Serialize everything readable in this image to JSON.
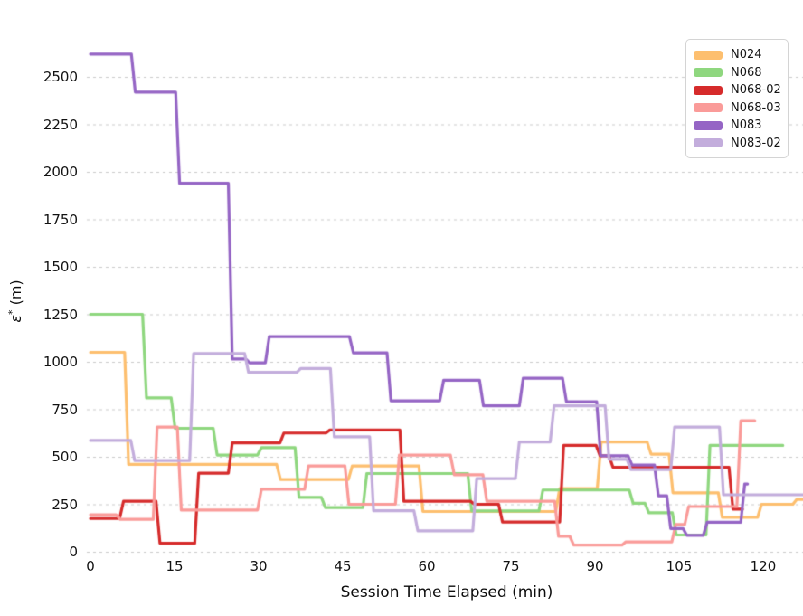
{
  "figure": {
    "xlabel": "Session Time Elapsed (min)",
    "ylabel_symbol": "ε",
    "ylabel_sup": "*",
    "ylabel_unit": " (m)",
    "background": "#ffffff",
    "grid_color": "#cbcbcb",
    "tick_color": "#121212"
  },
  "chart_data": {
    "type": "line",
    "step_style": "post-step with short ramps",
    "title": "",
    "xlabel": "Session Time Elapsed (min)",
    "ylabel": "ε* (m)",
    "xlim": [
      0,
      127.1
    ],
    "ylim": [
      0,
      2700
    ],
    "x_ticks": [
      0,
      15,
      30,
      45,
      60,
      75,
      90,
      105,
      120
    ],
    "y_ticks": [
      0,
      250,
      500,
      750,
      1000,
      1250,
      1500,
      1750,
      2000,
      2250,
      2500
    ],
    "grid": "horizontal dashed",
    "legend_position": "upper right",
    "series": [
      {
        "name": "N024",
        "color": "#fdbf6f",
        "end": 127.1,
        "points": [
          [
            0,
            1050
          ],
          [
            6.1,
            460
          ],
          [
            33.2,
            380
          ],
          [
            46,
            452
          ],
          [
            58.6,
            212
          ],
          [
            83,
            333
          ],
          [
            90.4,
            578
          ],
          [
            99.3,
            514
          ],
          [
            103.2,
            310
          ],
          [
            112,
            181
          ],
          [
            119,
            250
          ],
          [
            125.3,
            276
          ]
        ]
      },
      {
        "name": "N068",
        "color": "#8fd77f",
        "end": 123.5,
        "points": [
          [
            0,
            1250
          ],
          [
            9.3,
            810
          ],
          [
            14.4,
            650
          ],
          [
            21.9,
            509
          ],
          [
            29.8,
            548
          ],
          [
            36.5,
            286
          ],
          [
            41.2,
            233
          ],
          [
            48.6,
            412
          ],
          [
            67.3,
            215
          ],
          [
            80,
            325
          ],
          [
            96.1,
            255
          ],
          [
            98.9,
            205
          ],
          [
            103.8,
            88
          ],
          [
            109.8,
            560
          ]
        ]
      },
      {
        "name": "N068-02",
        "color": "#d62b2b",
        "end": 116.3,
        "points": [
          [
            0,
            175
          ],
          [
            5.2,
            266
          ],
          [
            11.7,
            45
          ],
          [
            18.6,
            414
          ],
          [
            24.6,
            573
          ],
          [
            33.8,
            625
          ],
          [
            42,
            641
          ],
          [
            55.2,
            266
          ],
          [
            67.8,
            250
          ],
          [
            72.8,
            157
          ],
          [
            83.7,
            560
          ],
          [
            90.2,
            505
          ],
          [
            92.5,
            445
          ],
          [
            113.9,
            224
          ]
        ]
      },
      {
        "name": "N068-03",
        "color": "#fa9b99",
        "end": 118.5,
        "points": [
          [
            0,
            195
          ],
          [
            4.6,
            171
          ],
          [
            11.2,
            657
          ],
          [
            15.5,
            220
          ],
          [
            29.8,
            329
          ],
          [
            38.2,
            452
          ],
          [
            45.4,
            250
          ],
          [
            54.4,
            509
          ],
          [
            64.2,
            405
          ],
          [
            70,
            266
          ],
          [
            82.8,
            81
          ],
          [
            85.5,
            35
          ],
          [
            94.8,
            52
          ],
          [
            103.7,
            143
          ],
          [
            106,
            238
          ],
          [
            115.3,
            690
          ]
        ]
      },
      {
        "name": "N083",
        "color": "#9565c5",
        "end": 117.2,
        "points": [
          [
            0,
            2620
          ],
          [
            7.3,
            2420
          ],
          [
            15.2,
            1940
          ],
          [
            24.6,
            1015
          ],
          [
            27.7,
            995
          ],
          [
            31.2,
            1133
          ],
          [
            46.2,
            1047
          ],
          [
            52.9,
            795
          ],
          [
            62.3,
            903
          ],
          [
            69.4,
            768
          ],
          [
            76.5,
            914
          ],
          [
            84.2,
            790
          ],
          [
            90.3,
            505
          ],
          [
            95.9,
            457
          ],
          [
            100.6,
            295
          ],
          [
            102.8,
            122
          ],
          [
            105.7,
            86
          ],
          [
            109.3,
            155
          ],
          [
            116,
            357
          ]
        ]
      },
      {
        "name": "N083-02",
        "color": "#c3addc",
        "end": 127.1,
        "points": [
          [
            0,
            586
          ],
          [
            7.2,
            480
          ],
          [
            17.7,
            1043
          ],
          [
            27.5,
            945
          ],
          [
            36.8,
            965
          ],
          [
            42.8,
            605
          ],
          [
            49.8,
            216
          ],
          [
            57.7,
            110
          ],
          [
            68.2,
            385
          ],
          [
            75.8,
            578
          ],
          [
            82,
            768
          ],
          [
            91.8,
            486
          ],
          [
            95.7,
            433
          ],
          [
            103.5,
            657
          ],
          [
            112.2,
            300
          ]
        ]
      }
    ]
  },
  "layout_note": "horizontal dashed gridlines only, no axis spines"
}
